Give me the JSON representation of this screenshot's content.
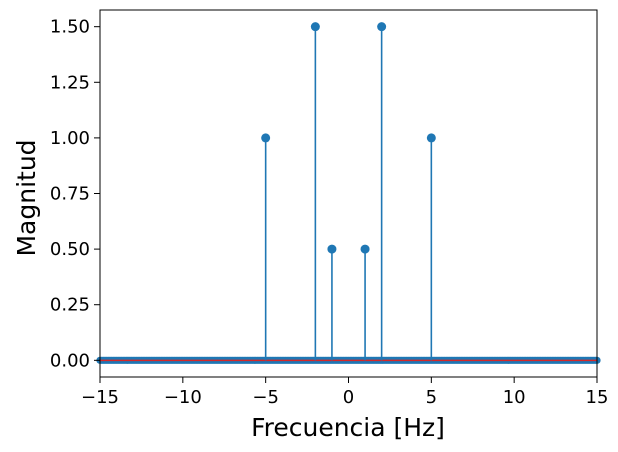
{
  "chart_data": {
    "type": "stem",
    "title": "",
    "xlabel": "Frecuencia [Hz]",
    "ylabel": "Magnitud",
    "xlim": [
      -15,
      15
    ],
    "ylim": [
      -0.075,
      1.575
    ],
    "xticks": [
      -15,
      -10,
      -5,
      0,
      5,
      10,
      15
    ],
    "xtick_labels": [
      "−15",
      "−10",
      "−5",
      "0",
      "5",
      "10",
      "15"
    ],
    "yticks": [
      0.0,
      0.25,
      0.5,
      0.75,
      1.0,
      1.25,
      1.5
    ],
    "ytick_labels": [
      "0.00",
      "0.25",
      "0.50",
      "0.75",
      "1.00",
      "1.25",
      "1.50"
    ],
    "grid": false,
    "baseline": 0,
    "sample_spacing_hz": 0.1,
    "peaks": [
      {
        "x": -5,
        "y": 1.0
      },
      {
        "x": -2,
        "y": 1.5
      },
      {
        "x": -1,
        "y": 0.5
      },
      {
        "x": 1,
        "y": 0.5
      },
      {
        "x": 2,
        "y": 1.5
      },
      {
        "x": 5,
        "y": 1.0
      }
    ],
    "colors": {
      "stem": "#1f77b4",
      "marker": "#1f77b4",
      "baseline": "#d62728"
    }
  }
}
